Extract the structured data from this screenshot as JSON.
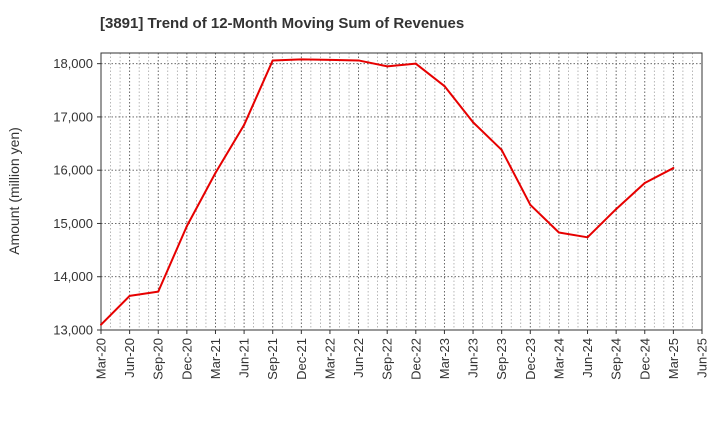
{
  "chart_data": {
    "type": "line",
    "title": "[3891]  Trend of 12-Month Moving Sum of Revenues",
    "xlabel": "",
    "ylabel": "Amount (million yen)",
    "ylim": [
      13000,
      18200
    ],
    "yticks": [
      13000,
      14000,
      15000,
      16000,
      17000,
      18000
    ],
    "ytick_labels": [
      "13,000",
      "14,000",
      "15,000",
      "16,000",
      "17,000",
      "18,000"
    ],
    "xtick_labels": [
      "Mar-20",
      "Jun-20",
      "Sep-20",
      "Dec-20",
      "Mar-21",
      "Jun-21",
      "Sep-21",
      "Dec-21",
      "Mar-22",
      "Jun-22",
      "Sep-22",
      "Dec-22",
      "Mar-23",
      "Jun-23",
      "Sep-23",
      "Dec-23",
      "Mar-24",
      "Jun-24",
      "Sep-24",
      "Dec-24",
      "Mar-25",
      "Jun-25"
    ],
    "grid": true,
    "line_color": "#e60000",
    "series": [
      {
        "x": [
          "Mar-20",
          "Jun-20",
          "Sep-20",
          "Dec-20",
          "Mar-21",
          "Jun-21",
          "Sep-21",
          "Dec-21",
          "Mar-22",
          "Jun-22",
          "Sep-22",
          "Dec-22",
          "Mar-23",
          "Jun-23",
          "Sep-23",
          "Dec-23",
          "Mar-24",
          "Jun-24",
          "Sep-24",
          "Dec-24",
          "Mar-25"
        ],
        "values": [
          13100,
          13640,
          13720,
          14950,
          15950,
          16850,
          18060,
          18080,
          18070,
          18060,
          17950,
          18000,
          17580,
          16900,
          16380,
          15350,
          14830,
          14740,
          15270,
          15760,
          16040
        ]
      }
    ]
  }
}
